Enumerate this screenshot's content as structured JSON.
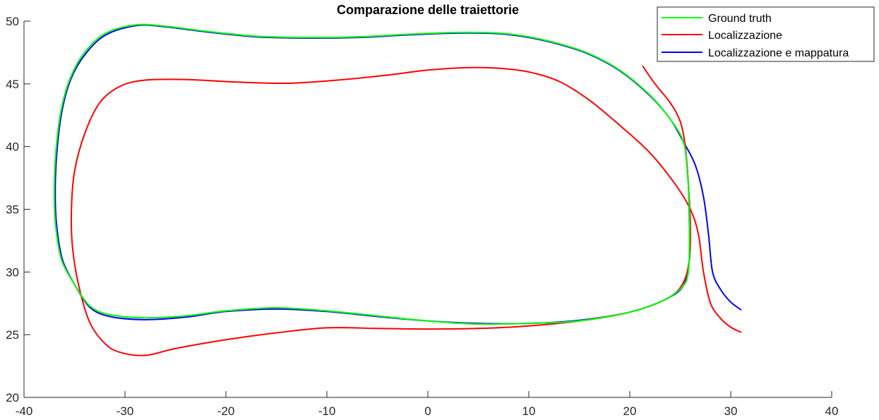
{
  "chart_data": {
    "type": "line",
    "title": "Comparazione delle traiettorie",
    "xlabel": "",
    "ylabel": "",
    "xlim": [
      -40,
      40
    ],
    "ylim": [
      20,
      50
    ],
    "xticks": [
      -40,
      -30,
      -20,
      -10,
      0,
      10,
      20,
      30,
      40
    ],
    "yticks": [
      20,
      25,
      30,
      35,
      40,
      45,
      50
    ],
    "xtick_labels": [
      "-40",
      "-30",
      "-20",
      "-10",
      "0",
      "10",
      "20",
      "30",
      "40"
    ],
    "ytick_labels": [
      "20",
      "25",
      "30",
      "35",
      "40",
      "45",
      "50"
    ],
    "grid": false,
    "legend_position": "top-right",
    "series": [
      {
        "name": "Ground truth",
        "color": "#00ff00",
        "points": [
          [
            -35.0,
            29.0
          ],
          [
            -36.3,
            31.0
          ],
          [
            -36.9,
            34.0
          ],
          [
            -37.0,
            37.0
          ],
          [
            -36.8,
            40.0
          ],
          [
            -36.3,
            43.0
          ],
          [
            -35.4,
            45.5
          ],
          [
            -34.0,
            47.5
          ],
          [
            -32.0,
            49.0
          ],
          [
            -29.0,
            49.7
          ],
          [
            -26.0,
            49.6
          ],
          [
            -22.0,
            49.2
          ],
          [
            -17.0,
            48.8
          ],
          [
            -12.0,
            48.7
          ],
          [
            -7.0,
            48.75
          ],
          [
            -2.0,
            48.95
          ],
          [
            3.0,
            49.1
          ],
          [
            7.0,
            49.05
          ],
          [
            10.0,
            48.75
          ],
          [
            13.0,
            48.2
          ],
          [
            16.0,
            47.4
          ],
          [
            19.0,
            46.1
          ],
          [
            22.0,
            44.1
          ],
          [
            24.0,
            42.2
          ],
          [
            25.3,
            40.4
          ],
          [
            25.7,
            38.0
          ],
          [
            25.9,
            35.0
          ],
          [
            25.9,
            32.0
          ],
          [
            25.8,
            30.0
          ],
          [
            25.3,
            28.9
          ],
          [
            23.5,
            27.8
          ],
          [
            20.0,
            26.8
          ],
          [
            15.0,
            26.1
          ],
          [
            10.0,
            25.9
          ],
          [
            5.0,
            25.85
          ],
          [
            0.0,
            26.1
          ],
          [
            -5.0,
            26.5
          ],
          [
            -10.0,
            26.9
          ],
          [
            -15.0,
            27.15
          ],
          [
            -20.0,
            26.9
          ],
          [
            -24.0,
            26.5
          ],
          [
            -28.0,
            26.35
          ],
          [
            -31.5,
            26.6
          ],
          [
            -33.5,
            27.3
          ],
          [
            -35.0,
            29.0
          ]
        ]
      },
      {
        "name": "Localizzazione",
        "color": "#ff0000",
        "points": [
          [
            21.3,
            46.4
          ],
          [
            22.5,
            45.0
          ],
          [
            24.0,
            43.5
          ],
          [
            25.0,
            42.0
          ],
          [
            25.5,
            40.0
          ],
          [
            25.8,
            37.0
          ],
          [
            26.0,
            34.0
          ],
          [
            25.9,
            31.0
          ],
          [
            25.2,
            29.0
          ],
          [
            23.5,
            27.8
          ],
          [
            20.0,
            26.8
          ],
          [
            15.0,
            26.1
          ],
          [
            10.0,
            25.7
          ],
          [
            5.0,
            25.5
          ],
          [
            0.0,
            25.45
          ],
          [
            -5.0,
            25.5
          ],
          [
            -10.0,
            25.55
          ],
          [
            -15.0,
            25.15
          ],
          [
            -20.0,
            24.6
          ],
          [
            -25.0,
            23.9
          ],
          [
            -28.0,
            23.35
          ],
          [
            -30.5,
            23.6
          ],
          [
            -32.0,
            24.3
          ],
          [
            -33.5,
            26.0
          ],
          [
            -34.6,
            29.0
          ],
          [
            -35.2,
            32.0
          ],
          [
            -35.3,
            35.0
          ],
          [
            -35.0,
            38.0
          ],
          [
            -34.0,
            41.0
          ],
          [
            -32.5,
            43.5
          ],
          [
            -30.5,
            44.8
          ],
          [
            -28.0,
            45.3
          ],
          [
            -24.0,
            45.35
          ],
          [
            -19.0,
            45.15
          ],
          [
            -14.0,
            45.05
          ],
          [
            -9.0,
            45.3
          ],
          [
            -4.0,
            45.7
          ],
          [
            0.0,
            46.1
          ],
          [
            4.0,
            46.3
          ],
          [
            7.0,
            46.25
          ],
          [
            10.0,
            45.95
          ],
          [
            13.0,
            45.2
          ],
          [
            16.0,
            43.7
          ],
          [
            19.0,
            41.7
          ],
          [
            22.0,
            39.5
          ],
          [
            24.5,
            37.0
          ],
          [
            26.0,
            35.0
          ],
          [
            26.8,
            33.0
          ],
          [
            27.3,
            30.0
          ],
          [
            28.0,
            27.5
          ],
          [
            29.0,
            26.3
          ],
          [
            30.0,
            25.6
          ],
          [
            31.0,
            25.2
          ]
        ]
      },
      {
        "name": "Localizzazione e mappatura",
        "color": "#0000ff",
        "points": [
          [
            -35.0,
            29.0
          ],
          [
            -36.2,
            31.0
          ],
          [
            -36.8,
            34.0
          ],
          [
            -36.9,
            37.0
          ],
          [
            -36.7,
            40.0
          ],
          [
            -36.2,
            43.0
          ],
          [
            -35.3,
            45.5
          ],
          [
            -33.9,
            47.4
          ],
          [
            -31.9,
            48.9
          ],
          [
            -28.9,
            49.65
          ],
          [
            -26.0,
            49.55
          ],
          [
            -22.0,
            49.15
          ],
          [
            -17.0,
            48.75
          ],
          [
            -12.0,
            48.65
          ],
          [
            -7.0,
            48.7
          ],
          [
            -2.0,
            48.9
          ],
          [
            3.0,
            49.05
          ],
          [
            7.0,
            49.0
          ],
          [
            10.0,
            48.7
          ],
          [
            13.0,
            48.15
          ],
          [
            16.0,
            47.35
          ],
          [
            19.0,
            46.05
          ],
          [
            22.0,
            44.05
          ],
          [
            24.0,
            42.2
          ],
          [
            25.3,
            40.4
          ],
          [
            26.5,
            38.5
          ],
          [
            27.3,
            36.0
          ],
          [
            27.8,
            33.0
          ],
          [
            28.2,
            30.0
          ],
          [
            29.0,
            28.6
          ],
          [
            30.0,
            27.6
          ],
          [
            31.0,
            27.0
          ]
        ],
        "points_inner": [
          [
            25.5,
            40.0
          ],
          [
            25.8,
            37.0
          ],
          [
            25.9,
            34.0
          ],
          [
            25.9,
            31.0
          ],
          [
            25.3,
            28.9
          ],
          [
            23.5,
            27.8
          ],
          [
            20.0,
            26.8
          ],
          [
            15.0,
            26.15
          ],
          [
            10.0,
            25.9
          ],
          [
            5.0,
            25.9
          ],
          [
            0.0,
            26.1
          ],
          [
            -5.0,
            26.45
          ],
          [
            -10.0,
            26.85
          ],
          [
            -15.0,
            27.05
          ],
          [
            -20.0,
            26.85
          ],
          [
            -24.0,
            26.4
          ],
          [
            -28.0,
            26.2
          ],
          [
            -31.5,
            26.45
          ],
          [
            -33.5,
            27.2
          ],
          [
            -35.0,
            29.0
          ]
        ]
      }
    ]
  }
}
